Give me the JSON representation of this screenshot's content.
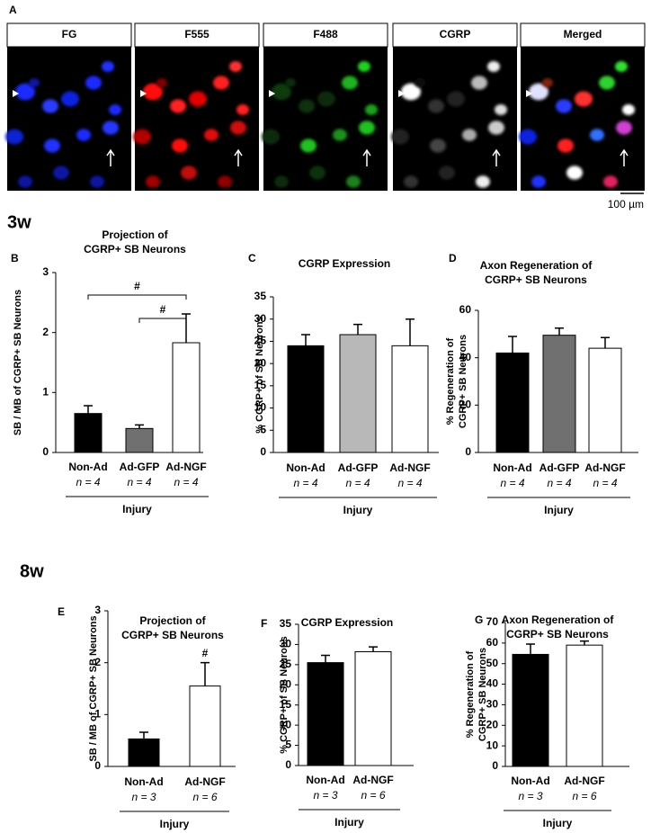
{
  "panel_a": {
    "letter": "A",
    "labels": [
      "FG",
      "F555",
      "F488",
      "CGRP",
      "Merged"
    ],
    "scale_bar": "100 µm"
  },
  "sections": [
    "3w",
    "8w"
  ],
  "chart_data": [
    {
      "type": "bar",
      "panel": "B",
      "title": [
        "Projection of",
        "CGRP+ SB Neurons"
      ],
      "ylabel": "SB / MB of CGRP+ SB Neurons",
      "xlabel": "Injury",
      "categories": [
        "Non-Ad",
        "Ad-GFP",
        "Ad-NGF"
      ],
      "n_labels": [
        "n = 4",
        "n = 4",
        "n = 4"
      ],
      "values": [
        0.65,
        0.4,
        1.83
      ],
      "errors": [
        0.13,
        0.06,
        0.48
      ],
      "colors": [
        "#000000",
        "#707070",
        "#ffffff"
      ],
      "ylim": [
        0,
        3
      ],
      "yticks": [
        0,
        1,
        2,
        3
      ],
      "significance": [
        {
          "between": [
            0,
            2
          ],
          "label": "#"
        },
        {
          "between": [
            1,
            2
          ],
          "label": "#"
        }
      ]
    },
    {
      "type": "bar",
      "panel": "C",
      "title": [
        "CGRP Expression"
      ],
      "ylabel": "% CGRP+ of SB Neurons",
      "xlabel": "Injury",
      "categories": [
        "Non-Ad",
        "Ad-GFP",
        "Ad-NGF"
      ],
      "n_labels": [
        "n = 4",
        "n = 4",
        "n = 4"
      ],
      "values": [
        24,
        26.5,
        24
      ],
      "errors": [
        2.5,
        2.3,
        6
      ],
      "colors": [
        "#000000",
        "#b8b8b8",
        "#ffffff"
      ],
      "ylim": [
        0,
        35
      ],
      "yticks": [
        0,
        5,
        10,
        15,
        20,
        25,
        30,
        35
      ]
    },
    {
      "type": "bar",
      "panel": "D",
      "title": [
        "Axon Regeneration of",
        "CGRP+ SB Neurons"
      ],
      "ylabel": [
        "% Regeneration of",
        "CGRP+ SB Neurons"
      ],
      "xlabel": "Injury",
      "categories": [
        "Non-Ad",
        "Ad-GFP",
        "Ad-NGF"
      ],
      "n_labels": [
        "n = 4",
        "n = 4",
        "n = 4"
      ],
      "values": [
        42,
        49.5,
        44
      ],
      "errors": [
        7,
        3,
        4.5
      ],
      "colors": [
        "#000000",
        "#707070",
        "#ffffff"
      ],
      "ylim": [
        0,
        60
      ],
      "yticks": [
        0,
        20,
        40,
        60
      ]
    },
    {
      "type": "bar",
      "panel": "E",
      "title": [
        "Projection of",
        "CGRP+ SB Neurons"
      ],
      "ylabel": "SB / MB of CGRP+ SB Neurons",
      "xlabel": "Injury",
      "categories": [
        "Non-Ad",
        "Ad-NGF"
      ],
      "n_labels": [
        "n = 3",
        "n = 6"
      ],
      "values": [
        0.53,
        1.55
      ],
      "errors": [
        0.13,
        0.45
      ],
      "colors": [
        "#000000",
        "#ffffff"
      ],
      "ylim": [
        0,
        3
      ],
      "yticks": [
        0,
        1,
        2,
        3
      ],
      "significance": [
        {
          "between": [
            1
          ],
          "label": "#"
        }
      ]
    },
    {
      "type": "bar",
      "panel": "F",
      "title": [
        "CGRP Expression"
      ],
      "ylabel": "% CGRP+ of SB Neurons",
      "xlabel": "Injury",
      "categories": [
        "Non-Ad",
        "Ad-NGF"
      ],
      "n_labels": [
        "n = 3",
        "n = 6"
      ],
      "values": [
        25.5,
        28.2
      ],
      "errors": [
        1.8,
        1.2
      ],
      "colors": [
        "#000000",
        "#ffffff"
      ],
      "ylim": [
        0,
        35
      ],
      "yticks": [
        0,
        5,
        10,
        15,
        20,
        25,
        30,
        35
      ]
    },
    {
      "type": "bar",
      "panel": "G",
      "title": [
        "Axon Regeneration of",
        "CGRP+ SB Neurons"
      ],
      "ylabel": [
        "% Regeneration of",
        "CGRP+ SB Neurons"
      ],
      "xlabel": "Injury",
      "categories": [
        "Non-Ad",
        "Ad-NGF"
      ],
      "n_labels": [
        "n = 3",
        "n = 6"
      ],
      "values": [
        54.5,
        59
      ],
      "errors": [
        5,
        2
      ],
      "colors": [
        "#000000",
        "#ffffff"
      ],
      "ylim": [
        0,
        70
      ],
      "yticks": [
        0,
        10,
        20,
        30,
        40,
        50,
        60,
        70
      ]
    }
  ]
}
